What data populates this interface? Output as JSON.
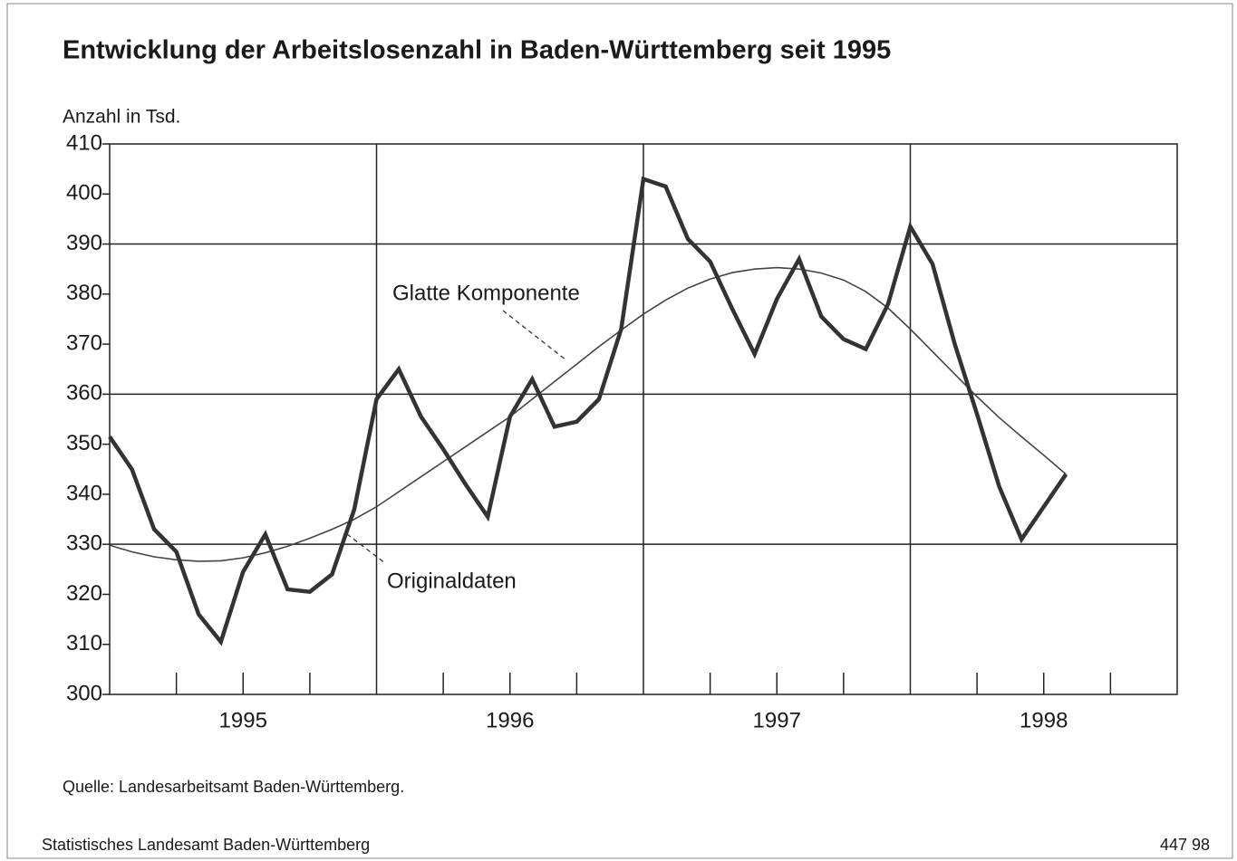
{
  "chart_data": {
    "type": "line",
    "title": "Entwicklung der Arbeitslosenzahl in Baden-Württemberg seit 1995",
    "y_axis_label": "Anzahl in Tsd.",
    "source": "Quelle: Landesarbeitsamt Baden-Württemberg.",
    "footer_left": "Statistisches Landesamt Baden-Württemberg",
    "footer_right": "447 98",
    "annotations": [
      "Glatte Komponente",
      "Originaldaten"
    ],
    "x": [
      0,
      1,
      2,
      3,
      4,
      5,
      6,
      7,
      8,
      9,
      10,
      11,
      12,
      13,
      14,
      15,
      16,
      17,
      18,
      19,
      20,
      21,
      22,
      23,
      24,
      25,
      26,
      27,
      28,
      29,
      30,
      31,
      32,
      33,
      34,
      35,
      36,
      37,
      38,
      39,
      40,
      41,
      42,
      43
    ],
    "series": [
      {
        "name": "Originaldaten",
        "color": "#333333",
        "width": 4.5,
        "values": [
          351.5,
          345,
          333,
          328.5,
          316,
          310.5,
          324.5,
          332,
          321,
          320.5,
          324,
          337,
          359,
          365,
          355.5,
          349,
          342,
          335.5,
          355.5,
          363,
          353.5,
          354.5,
          359,
          373,
          403,
          401.5,
          391,
          386.5,
          377,
          368,
          379,
          387,
          375.5,
          371,
          369,
          378,
          393.5,
          386,
          370,
          356,
          341.5,
          331,
          337.5,
          344
        ]
      },
      {
        "name": "Glatte Komponente",
        "color": "#444444",
        "width": 1.6,
        "values": [
          329.8,
          328.5,
          327.5,
          326.9,
          326.6,
          326.7,
          327.3,
          328.3,
          329.6,
          331.2,
          333,
          335,
          337.5,
          340.5,
          343.5,
          346.5,
          349.5,
          352.5,
          355.5,
          359,
          362.5,
          366,
          369.5,
          372.8,
          376,
          378.8,
          381.2,
          383,
          384.3,
          385,
          385.3,
          385,
          384.2,
          382.8,
          380.5,
          377.2,
          373,
          368.5,
          364,
          359.5,
          355.3,
          351.5,
          347.8,
          344
        ]
      }
    ],
    "xlim": [
      0,
      48
    ],
    "xticks": [
      {
        "value": 6,
        "label": "1995"
      },
      {
        "value": 18,
        "label": "1996"
      },
      {
        "value": 30,
        "label": "1997"
      },
      {
        "value": 42,
        "label": "1998"
      }
    ],
    "xgrid": [
      12,
      24,
      36
    ],
    "minor_xticks": [
      3,
      6,
      9,
      15,
      18,
      21,
      27,
      30,
      33,
      39,
      42,
      45
    ],
    "ylim": [
      300,
      410
    ],
    "yticks": [
      300,
      310,
      320,
      330,
      340,
      350,
      360,
      370,
      380,
      390,
      400,
      410
    ],
    "ygrid": [
      330,
      360,
      390
    ],
    "grid": true
  }
}
